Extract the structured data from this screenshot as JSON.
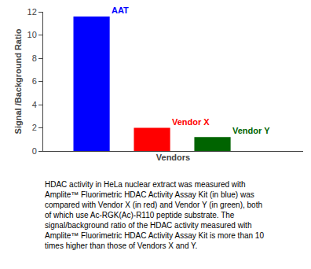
{
  "chart_data": {
    "type": "bar",
    "categories": [
      "AAT",
      "Vendor X",
      "Vendor Y"
    ],
    "values": [
      11.6,
      2.0,
      1.2
    ],
    "colors": [
      "#0000ff",
      "#ff0000",
      "#006400"
    ],
    "xlabel": "Vendors",
    "ylabel": "Signal /Background Ratio",
    "ylim": [
      0,
      12
    ],
    "yticks": [
      0,
      2,
      4,
      6,
      8,
      10,
      12
    ],
    "grid": false,
    "tick_labels": "y",
    "annotations": [
      "HDAC activity in HeLa nuclear extract was measured with Amplite™ Fluorimetric HDAC Activity Assay Kit (in blue) was compared with Vendor X (in red) and Vendor Y (in green), both of which use Ac-RGK(Ac)-R110 peptide substrate. The signal/background ratio of the HDAC activity measured with Amplite™ Fluorimetric HDAC Activity Assay Kit is more than 10 times higher than those of Vendors X and Y."
    ]
  }
}
